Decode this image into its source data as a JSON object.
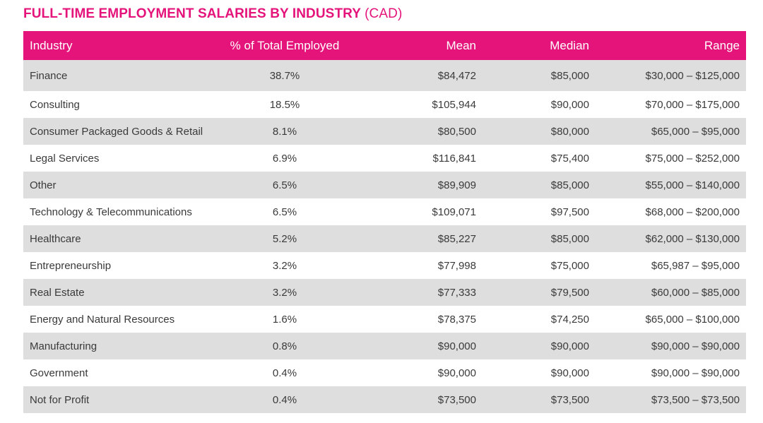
{
  "title": {
    "main": "FULL-TIME EMPLOYMENT SALARIES BY INDUSTRY",
    "unit": "(CAD)"
  },
  "colors": {
    "accent": "#e4147b",
    "row_shaded": "#dedede",
    "row_plain": "#ffffff",
    "text": "#3a3a3a"
  },
  "table": {
    "headers": {
      "industry": "Industry",
      "pct": "% of Total Employed",
      "mean": "Mean",
      "median": "Median",
      "range": "Range"
    },
    "rows": [
      {
        "industry": "Finance",
        "pct": "38.7%",
        "mean": "$84,472",
        "median": "$85,000",
        "range": "$30,000 – $125,000"
      },
      {
        "industry": "Consulting",
        "pct": "18.5%",
        "mean": "$105,944",
        "median": "$90,000",
        "range": "$70,000 – $175,000"
      },
      {
        "industry": "Consumer Packaged Goods & Retail",
        "pct": "8.1%",
        "mean": "$80,500",
        "median": "$80,000",
        "range": "$65,000 – $95,000"
      },
      {
        "industry": "Legal Services",
        "pct": "6.9%",
        "mean": "$116,841",
        "median": "$75,400",
        "range": "$75,000 – $252,000"
      },
      {
        "industry": "Other",
        "pct": "6.5%",
        "mean": "$89,909",
        "median": "$85,000",
        "range": "$55,000 – $140,000"
      },
      {
        "industry": "Technology & Telecommunications",
        "pct": "6.5%",
        "mean": "$109,071",
        "median": "$97,500",
        "range": "$68,000 – $200,000"
      },
      {
        "industry": "Healthcare",
        "pct": "5.2%",
        "mean": "$85,227",
        "median": "$85,000",
        "range": "$62,000 – $130,000"
      },
      {
        "industry": "Entrepreneurship",
        "pct": "3.2%",
        "mean": "$77,998",
        "median": "$75,000",
        "range": "$65,987 – $95,000"
      },
      {
        "industry": "Real Estate",
        "pct": "3.2%",
        "mean": "$77,333",
        "median": "$79,500",
        "range": "$60,000 – $85,000"
      },
      {
        "industry": "Energy and Natural Resources",
        "pct": "1.6%",
        "mean": "$78,375",
        "median": "$74,250",
        "range": "$65,000 – $100,000"
      },
      {
        "industry": "Manufacturing",
        "pct": "0.8%",
        "mean": "$90,000",
        "median": "$90,000",
        "range": "$90,000 – $90,000"
      },
      {
        "industry": "Government",
        "pct": "0.4%",
        "mean": "$90,000",
        "median": "$90,000",
        "range": "$90,000 – $90,000"
      },
      {
        "industry": "Not for Profit",
        "pct": "0.4%",
        "mean": "$73,500",
        "median": "$73,500",
        "range": "$73,500 – $73,500"
      }
    ]
  }
}
